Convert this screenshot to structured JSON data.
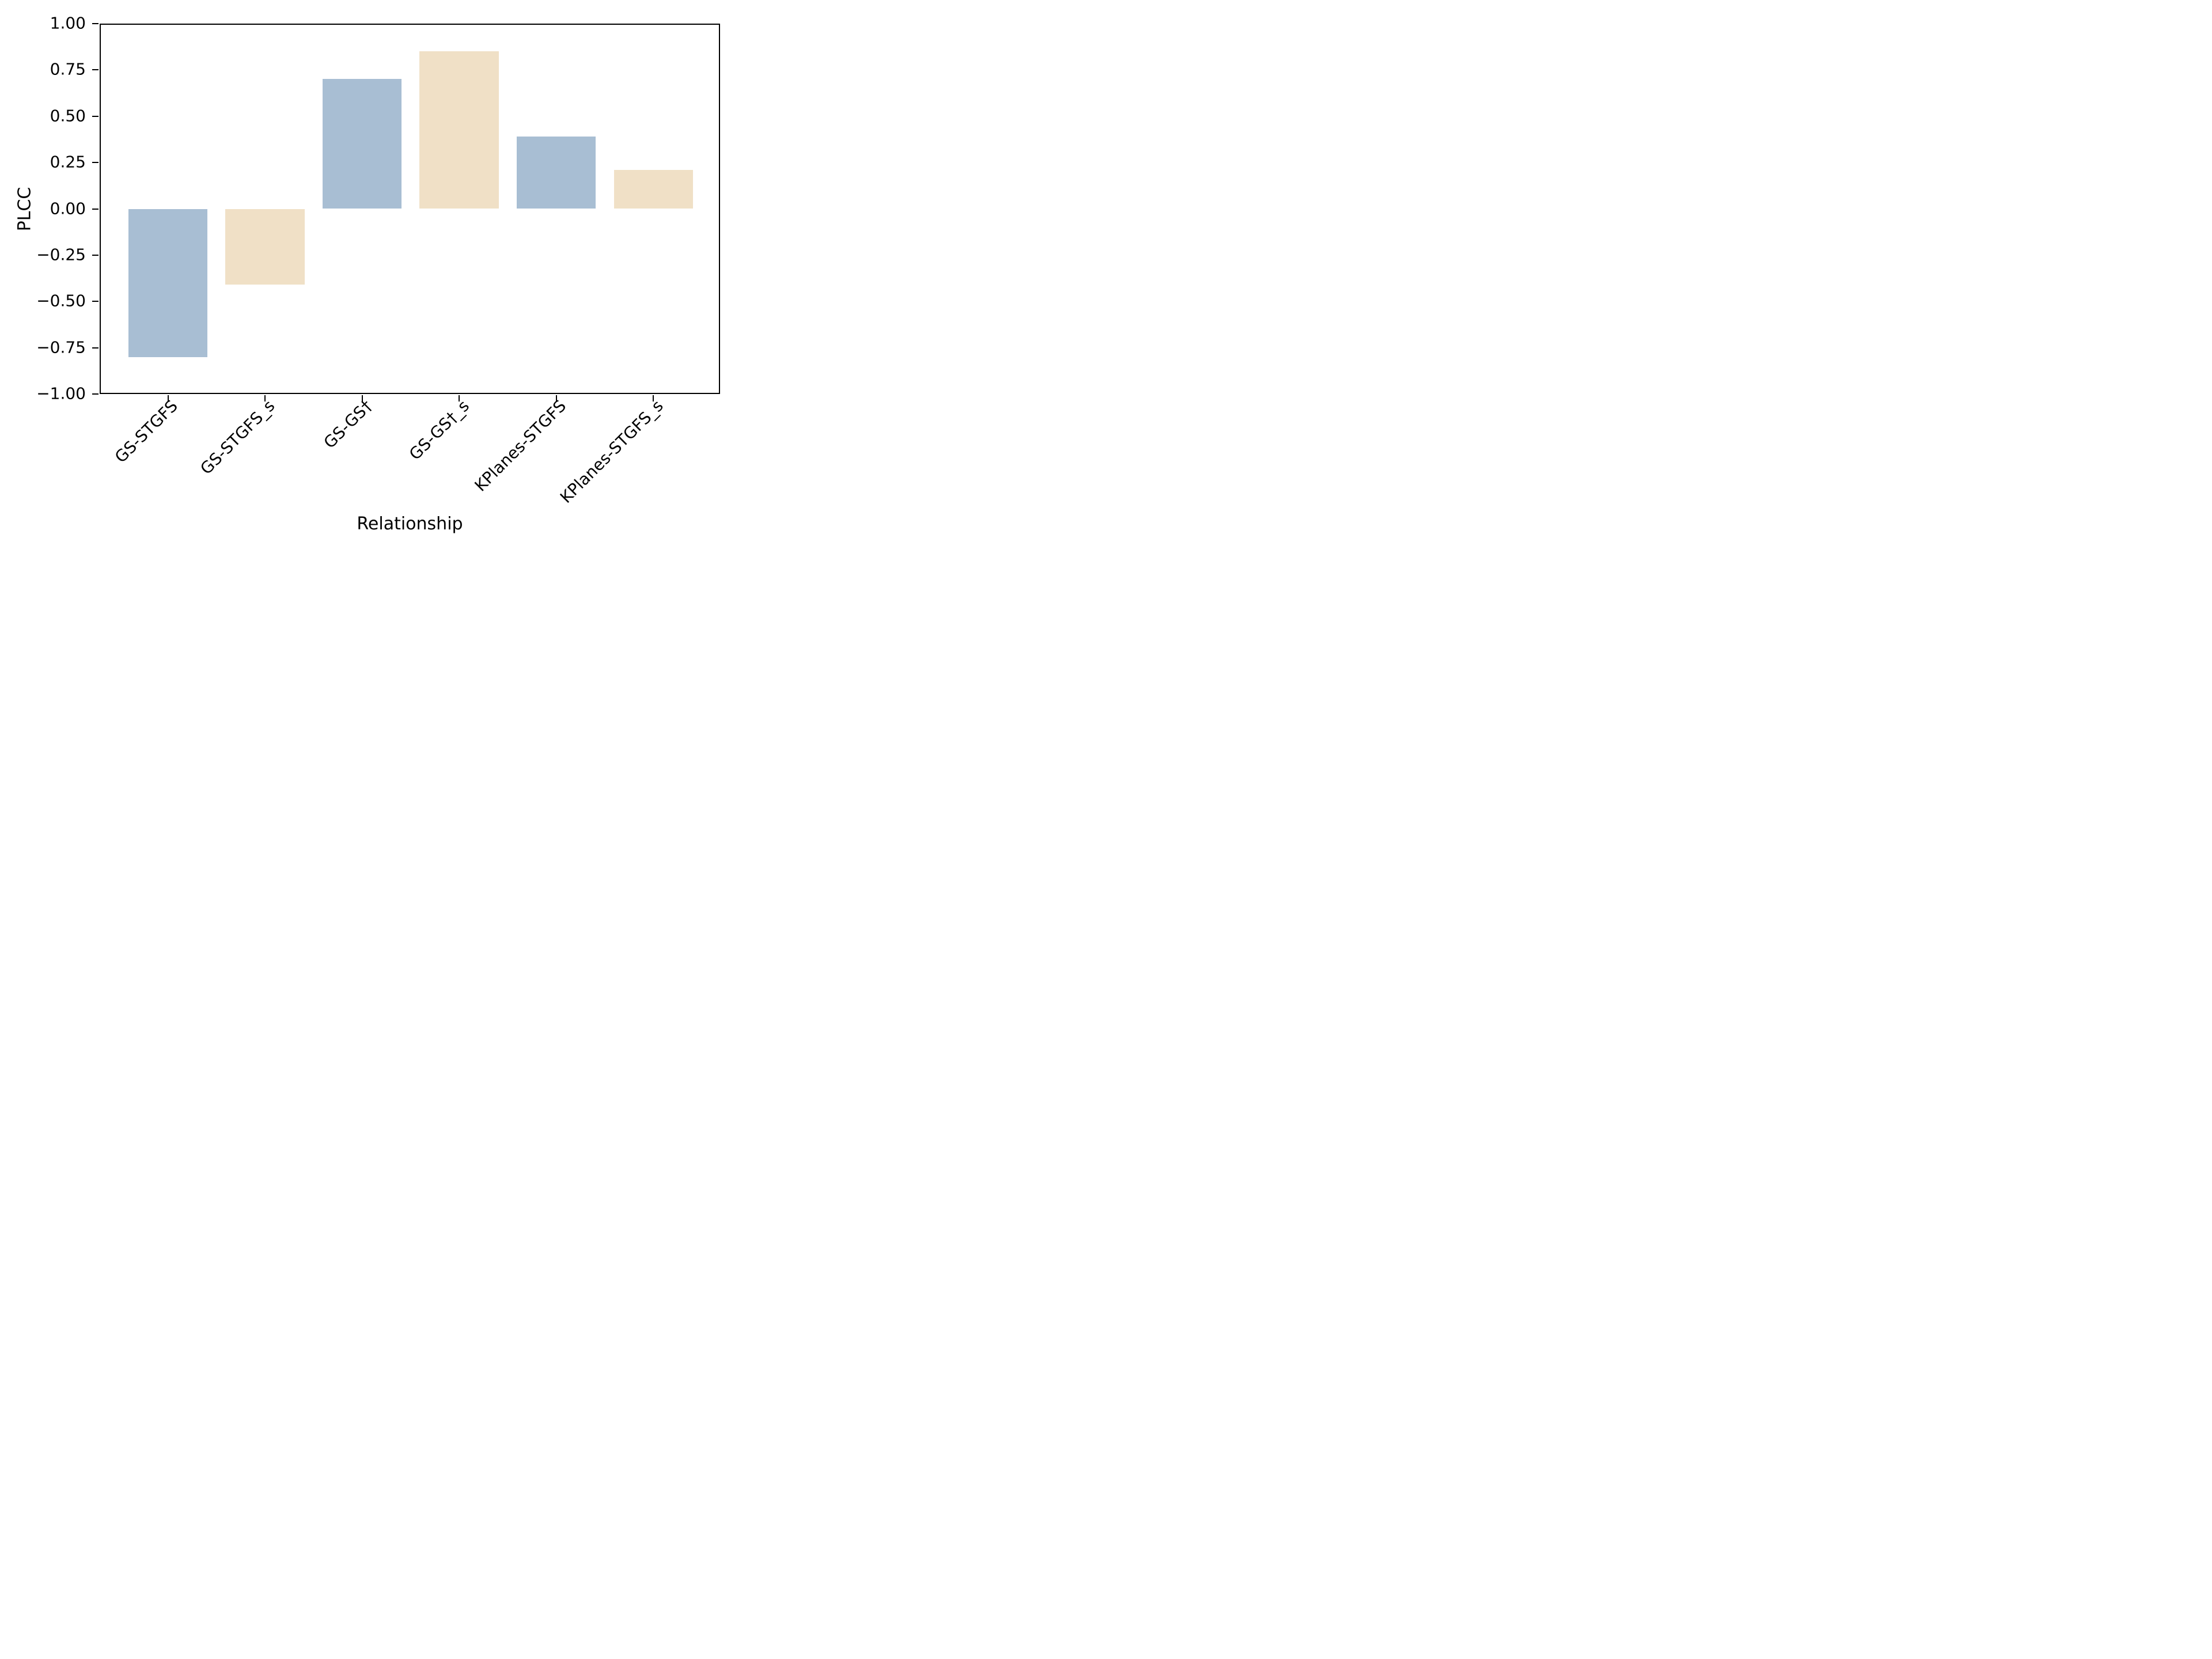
{
  "figure": {
    "xlabel": "Relationship",
    "ylabel": "PLCC",
    "background": "#ffffff"
  },
  "chart_data": {
    "type": "bar",
    "title": "",
    "xlabel": "Relationship",
    "ylabel": "PLCC",
    "categories": [
      "GS-STGFS",
      "GS-STGFS_s",
      "GS-GS†",
      "GS-GS†_s",
      "KPlanes-STGFS",
      "KPlanes-STGFS_s"
    ],
    "values": [
      -0.8,
      -0.41,
      0.7,
      0.85,
      0.39,
      0.21
    ],
    "bar_colors": [
      "#a8bed3",
      "#f0e0c6",
      "#a8bed3",
      "#f0e0c6",
      "#a8bed3",
      "#f0e0c6"
    ],
    "ylim": [
      -1.0,
      1.0
    ],
    "yticks": [
      1.0,
      0.75,
      0.5,
      0.25,
      0.0,
      -0.25,
      -0.5,
      -0.75,
      -1.0
    ],
    "ytick_labels": [
      "1.00",
      "0.75",
      "0.50",
      "0.25",
      "0.00",
      "−0.25",
      "−0.50",
      "−0.75",
      "−1.00"
    ],
    "x_tick_rotation_deg": 45,
    "grid": false,
    "legend": null,
    "colors": {
      "series_blue": "#a8bed3",
      "series_tan": "#f0e0c6",
      "axes": "#000000",
      "text": "#000000",
      "background": "#ffffff"
    }
  }
}
